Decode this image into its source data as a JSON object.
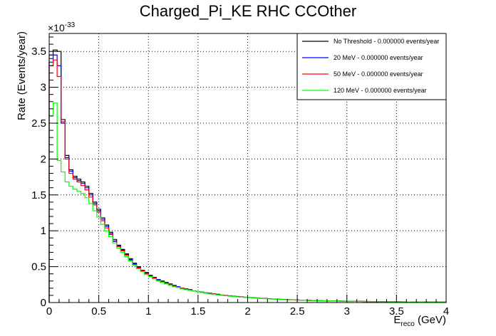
{
  "chart_data": {
    "type": "line",
    "title": "Charged_Pi_KE RHC CCOther",
    "xlabel": "E",
    "xlabel_sub": "reco",
    "xlabel_unit": " (GeV)",
    "ylabel": "Rate (Events/year)",
    "y_multiplier": "×10",
    "y_exponent": "-33",
    "xlim": [
      0,
      4
    ],
    "ylim": [
      0,
      3.75
    ],
    "grid": true,
    "legend_position": "top-right",
    "x_ticks": [
      0,
      0.5,
      1,
      1.5,
      2,
      2.5,
      3,
      3.5,
      4
    ],
    "x_tick_labels": [
      "0",
      "0.5",
      "1",
      "1.5",
      "2",
      "2.5",
      "3",
      "3.5",
      "4"
    ],
    "y_ticks": [
      0,
      0.5,
      1,
      1.5,
      2,
      2.5,
      3,
      3.5
    ],
    "y_tick_labels": [
      "0",
      "0.5",
      "1",
      "1.5",
      "2",
      "2.5",
      "3",
      "3.5"
    ],
    "bin_width": 0.04,
    "bin_start": 0,
    "series": [
      {
        "name": "No Threshold - 0.000000 events/year",
        "color": "#000000",
        "values": [
          3.45,
          3.52,
          3.5,
          2.55,
          2.05,
          1.85,
          1.76,
          1.72,
          1.68,
          1.62,
          1.52,
          1.4,
          1.3,
          1.18,
          1.08,
          0.98,
          0.88,
          0.8,
          0.74,
          0.68,
          0.61,
          0.55,
          0.5,
          0.45,
          0.42,
          0.38,
          0.35,
          0.32,
          0.3,
          0.28,
          0.26,
          0.24,
          0.22,
          0.2,
          0.19,
          0.18,
          0.16,
          0.15,
          0.145,
          0.135,
          0.13,
          0.12,
          0.115,
          0.105,
          0.1,
          0.095,
          0.09,
          0.085,
          0.08,
          0.075,
          0.07,
          0.067,
          0.063,
          0.06,
          0.057,
          0.053,
          0.05,
          0.047,
          0.045,
          0.042,
          0.04,
          0.038,
          0.036,
          0.034,
          0.032,
          0.031,
          0.029,
          0.028,
          0.026,
          0.025,
          0.024,
          0.023,
          0.022,
          0.021,
          0.02,
          0.019,
          0.018,
          0.017,
          0.016,
          0.015,
          0.015,
          0.014,
          0.013,
          0.013,
          0.012,
          0.012,
          0.011,
          0.011,
          0.01,
          0.01,
          0.009,
          0.009,
          0.009,
          0.008,
          0.008,
          0.008,
          0.007,
          0.007,
          0.007,
          0.007
        ]
      },
      {
        "name": "20 MeV - 0.000000 events/year",
        "color": "#0000ff",
        "values": [
          3.35,
          3.45,
          3.3,
          2.5,
          2.02,
          1.83,
          1.74,
          1.7,
          1.66,
          1.6,
          1.5,
          1.38,
          1.28,
          1.16,
          1.06,
          0.96,
          0.86,
          0.79,
          0.73,
          0.67,
          0.6,
          0.54,
          0.49,
          0.45,
          0.41,
          0.37,
          0.34,
          0.32,
          0.29,
          0.27,
          0.25,
          0.23,
          0.22,
          0.2,
          0.19,
          0.17,
          0.16,
          0.15,
          0.14,
          0.13,
          0.125,
          0.118,
          0.11,
          0.103,
          0.098,
          0.093,
          0.088,
          0.083,
          0.078,
          0.073,
          0.069,
          0.065,
          0.062,
          0.058,
          0.055,
          0.052,
          0.049,
          0.046,
          0.044,
          0.041,
          0.039,
          0.037,
          0.035,
          0.033,
          0.031,
          0.03,
          0.028,
          0.027,
          0.025,
          0.024,
          0.023,
          0.022,
          0.021,
          0.02,
          0.019,
          0.018,
          0.017,
          0.017,
          0.016,
          0.015,
          0.014,
          0.014,
          0.013,
          0.012,
          0.012,
          0.011,
          0.011,
          0.01,
          0.01,
          0.009,
          0.009,
          0.009,
          0.008,
          0.008,
          0.008,
          0.007,
          0.007,
          0.007,
          0.007,
          0.006
        ]
      },
      {
        "name": "50 MeV - 0.000000 events/year",
        "color": "#ff0000",
        "values": [
          3.3,
          3.38,
          3.15,
          2.52,
          2.0,
          1.8,
          1.72,
          1.68,
          1.63,
          1.57,
          1.47,
          1.36,
          1.26,
          1.14,
          1.04,
          0.95,
          0.85,
          0.78,
          0.72,
          0.66,
          0.59,
          0.53,
          0.48,
          0.44,
          0.4,
          0.37,
          0.34,
          0.31,
          0.29,
          0.27,
          0.25,
          0.23,
          0.21,
          0.2,
          0.18,
          0.17,
          0.16,
          0.15,
          0.14,
          0.13,
          0.125,
          0.117,
          0.11,
          0.103,
          0.097,
          0.092,
          0.087,
          0.082,
          0.077,
          0.073,
          0.069,
          0.065,
          0.061,
          0.058,
          0.055,
          0.052,
          0.049,
          0.046,
          0.043,
          0.041,
          0.039,
          0.037,
          0.035,
          0.033,
          0.031,
          0.03,
          0.028,
          0.027,
          0.025,
          0.024,
          0.023,
          0.022,
          0.021,
          0.02,
          0.019,
          0.018,
          0.017,
          0.016,
          0.016,
          0.015,
          0.014,
          0.014,
          0.013,
          0.012,
          0.012,
          0.011,
          0.011,
          0.01,
          0.01,
          0.009,
          0.009,
          0.009,
          0.008,
          0.008,
          0.008,
          0.007,
          0.007,
          0.007,
          0.006,
          0.006
        ]
      },
      {
        "name": "120 MeV - 0.000000 events/year",
        "color": "#00ff00",
        "values": [
          2.6,
          2.78,
          1.98,
          1.82,
          1.68,
          1.62,
          1.58,
          1.55,
          1.52,
          1.46,
          1.38,
          1.28,
          1.19,
          1.09,
          1.0,
          0.92,
          0.83,
          0.76,
          0.7,
          0.64,
          0.58,
          0.52,
          0.47,
          0.43,
          0.39,
          0.36,
          0.33,
          0.3,
          0.28,
          0.26,
          0.24,
          0.22,
          0.21,
          0.19,
          0.18,
          0.17,
          0.16,
          0.15,
          0.14,
          0.13,
          0.12,
          0.113,
          0.106,
          0.1,
          0.094,
          0.089,
          0.084,
          0.079,
          0.075,
          0.071,
          0.067,
          0.063,
          0.06,
          0.057,
          0.053,
          0.05,
          0.048,
          0.045,
          0.043,
          0.04,
          0.038,
          0.036,
          0.034,
          0.032,
          0.031,
          0.029,
          0.028,
          0.026,
          0.025,
          0.024,
          0.023,
          0.022,
          0.021,
          0.02,
          0.019,
          0.018,
          0.017,
          0.016,
          0.015,
          0.015,
          0.014,
          0.013,
          0.013,
          0.012,
          0.012,
          0.011,
          0.011,
          0.01,
          0.01,
          0.009,
          0.009,
          0.008,
          0.008,
          0.008,
          0.007,
          0.007,
          0.007,
          0.007,
          0.006,
          0.006
        ]
      }
    ]
  }
}
